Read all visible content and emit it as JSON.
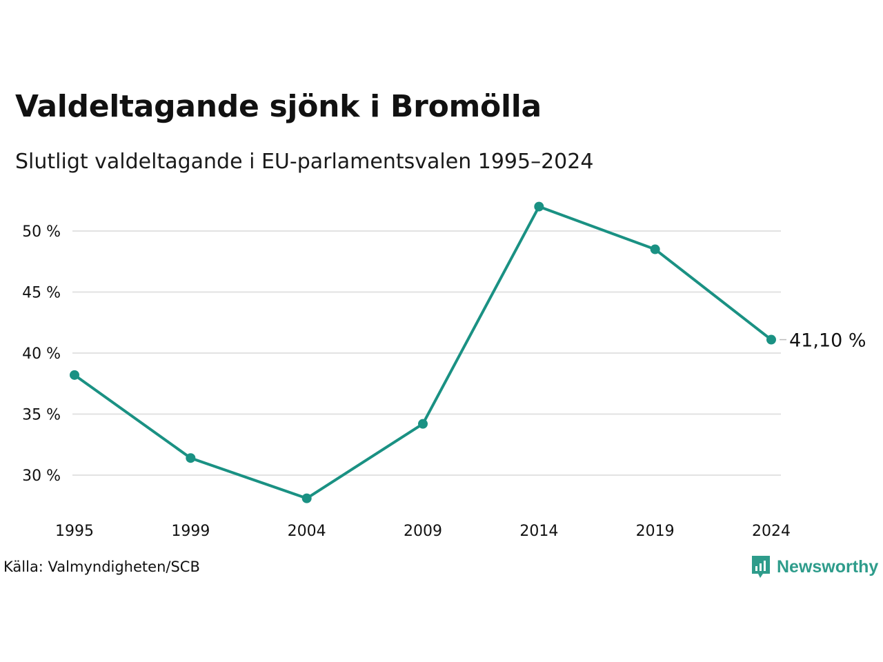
{
  "title": "Valdeltagande sjönk i Bromölla",
  "subtitle": "Slutligt valdeltagande i EU-parlamentsvalen 1995–2024",
  "source": "Källa: Valmyndigheten/SCB",
  "brand": {
    "name": "Newsworthy",
    "icon": "newsworthy-logo-icon",
    "color": "#2e9c8b"
  },
  "colors": {
    "line": "#1a9183",
    "grid": "#e2e2e2"
  },
  "chart_data": {
    "type": "line",
    "title": "Valdeltagande sjönk i Bromölla",
    "subtitle": "Slutligt valdeltagande i EU-parlamentsvalen 1995–2024",
    "x": [
      "1995",
      "1999",
      "2004",
      "2009",
      "2014",
      "2019",
      "2024"
    ],
    "series": [
      {
        "values": [
          38.2,
          31.4,
          28.1,
          34.2,
          52.0,
          48.5,
          41.1
        ]
      }
    ],
    "yticks": [
      30,
      35,
      40,
      45,
      50
    ],
    "ytick_labels": [
      "30 %",
      "35 %",
      "40 %",
      "45 %",
      "50 %"
    ],
    "ylim": [
      27,
      53
    ],
    "grid": true,
    "end_label": "41,10 %"
  }
}
